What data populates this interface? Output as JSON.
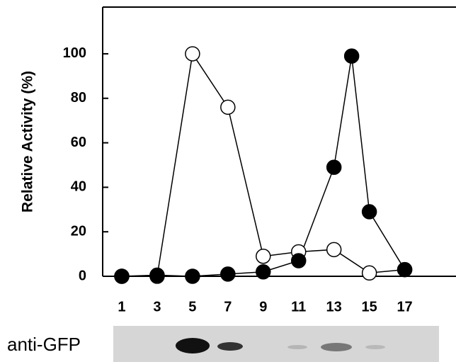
{
  "chart_data": {
    "type": "line",
    "y_label": "Relative Activity (%)",
    "blot_label": "anti-GFP",
    "xlim": [
      0,
      19.9
    ],
    "xticks": [
      1,
      3,
      5,
      7,
      9,
      11,
      13,
      15,
      17
    ],
    "ylim": [
      0,
      121
    ],
    "yticks": [
      0,
      20,
      40,
      60,
      80,
      100
    ],
    "series": [
      {
        "color": "#ffffff",
        "x": [
          1,
          3,
          5,
          7,
          9,
          11,
          13,
          15,
          17
        ],
        "values": [
          0,
          0,
          100,
          76,
          9,
          11,
          12,
          1.5,
          3
        ]
      },
      {
        "color": "#000000",
        "x": [
          1,
          3,
          5,
          7,
          9,
          11,
          13,
          14,
          15,
          17
        ],
        "values": [
          0,
          0.5,
          0,
          1,
          2,
          7,
          49,
          99,
          29,
          3
        ]
      }
    ]
  }
}
